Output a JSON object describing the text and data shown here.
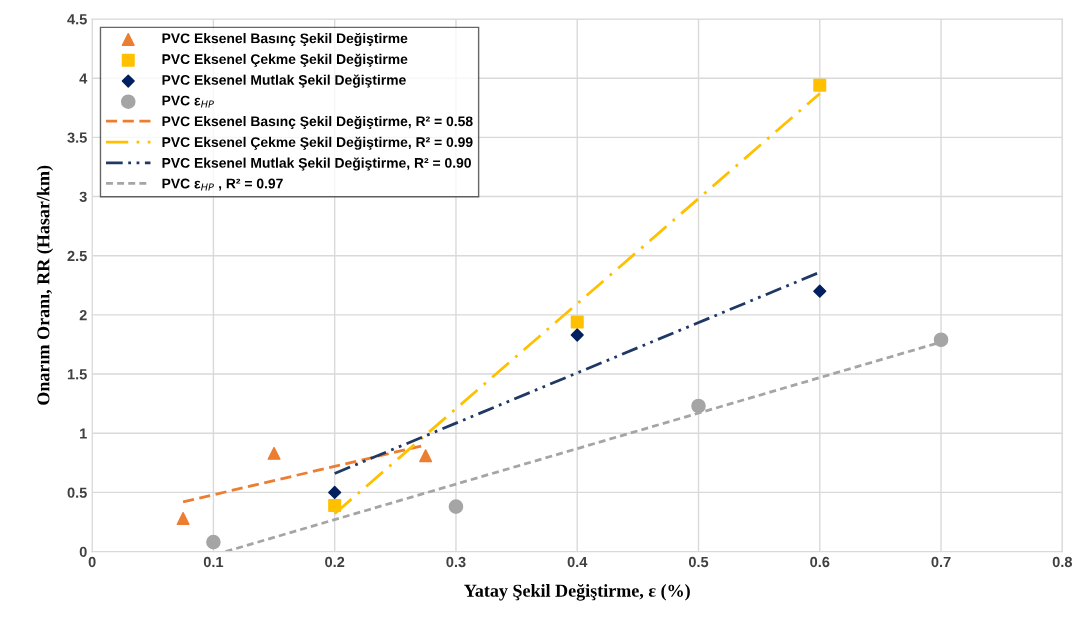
{
  "chart_data": {
    "type": "scatter",
    "xlabel": "Yatay Şekil Değiştirme, ε (%)",
    "ylabel": "Onarım Oranı, RR (Hasar/km)",
    "xlim": [
      0,
      0.8
    ],
    "xticks": [
      0,
      0.1,
      0.2,
      0.3,
      0.4,
      0.5,
      0.6,
      0.7,
      0.8
    ],
    "ylim": [
      0,
      4.5
    ],
    "yticks": [
      0,
      0.5,
      1,
      1.5,
      2,
      2.5,
      3,
      3.5,
      4,
      4.5
    ],
    "grid": true,
    "legend": "top left",
    "series": [
      {
        "name": "PVC Eksenel Basınç Şekil Değiştirme",
        "marker": "triangle",
        "color": "#ed7d31",
        "x": [
          0.075,
          0.15,
          0.275
        ],
        "values": [
          0.28,
          0.83,
          0.81
        ]
      },
      {
        "name": "PVC Eksenel Çekme Şekil Değiştirme",
        "marker": "square",
        "color": "#ffc000",
        "x": [
          0.2,
          0.4,
          0.6
        ],
        "values": [
          0.39,
          1.94,
          3.94
        ]
      },
      {
        "name": "PVC Eksenel Mutlak Şekil Değiştirme",
        "marker": "diamond",
        "color": "#002060",
        "x": [
          0.2,
          0.4,
          0.6
        ],
        "values": [
          0.5,
          1.83,
          2.2
        ]
      },
      {
        "name": "PVC ε$_{HP}$",
        "marker": "circle",
        "color": "#a5a5a5",
        "x": [
          0.1,
          0.3,
          0.5,
          0.7
        ],
        "values": [
          0.08,
          0.38,
          1.23,
          1.79
        ]
      },
      {
        "name": "PVC Eksenel Basınç Şekil Değiştirme, R² = 0.58",
        "type": "line",
        "line_style": "dashed",
        "color": "#ed7d31",
        "x": [
          0.075,
          0.275
        ],
        "values": [
          0.42,
          0.9
        ]
      },
      {
        "name": "PVC Eksenel Çekme Şekil Değiştirme, R² = 0.99",
        "type": "line",
        "line_style": "dashdot",
        "color": "#ffc000",
        "x": [
          0.2,
          0.6
        ],
        "values": [
          0.32,
          3.87
        ]
      },
      {
        "name": "PVC Eksenel Mutlak Şekil Değiştirme, R² = 0.90",
        "type": "line",
        "line_style": "dashdotdot",
        "color": "#1f3864",
        "x": [
          0.2,
          0.6
        ],
        "values": [
          0.66,
          2.36
        ]
      },
      {
        "name": "PVC ε$_{HP}$ , R² = 0.97",
        "type": "line",
        "line_style": "dotted",
        "color": "#a5a5a5",
        "x": [
          0.11,
          0.7
        ],
        "values": [
          0.0,
          1.77
        ]
      }
    ]
  }
}
